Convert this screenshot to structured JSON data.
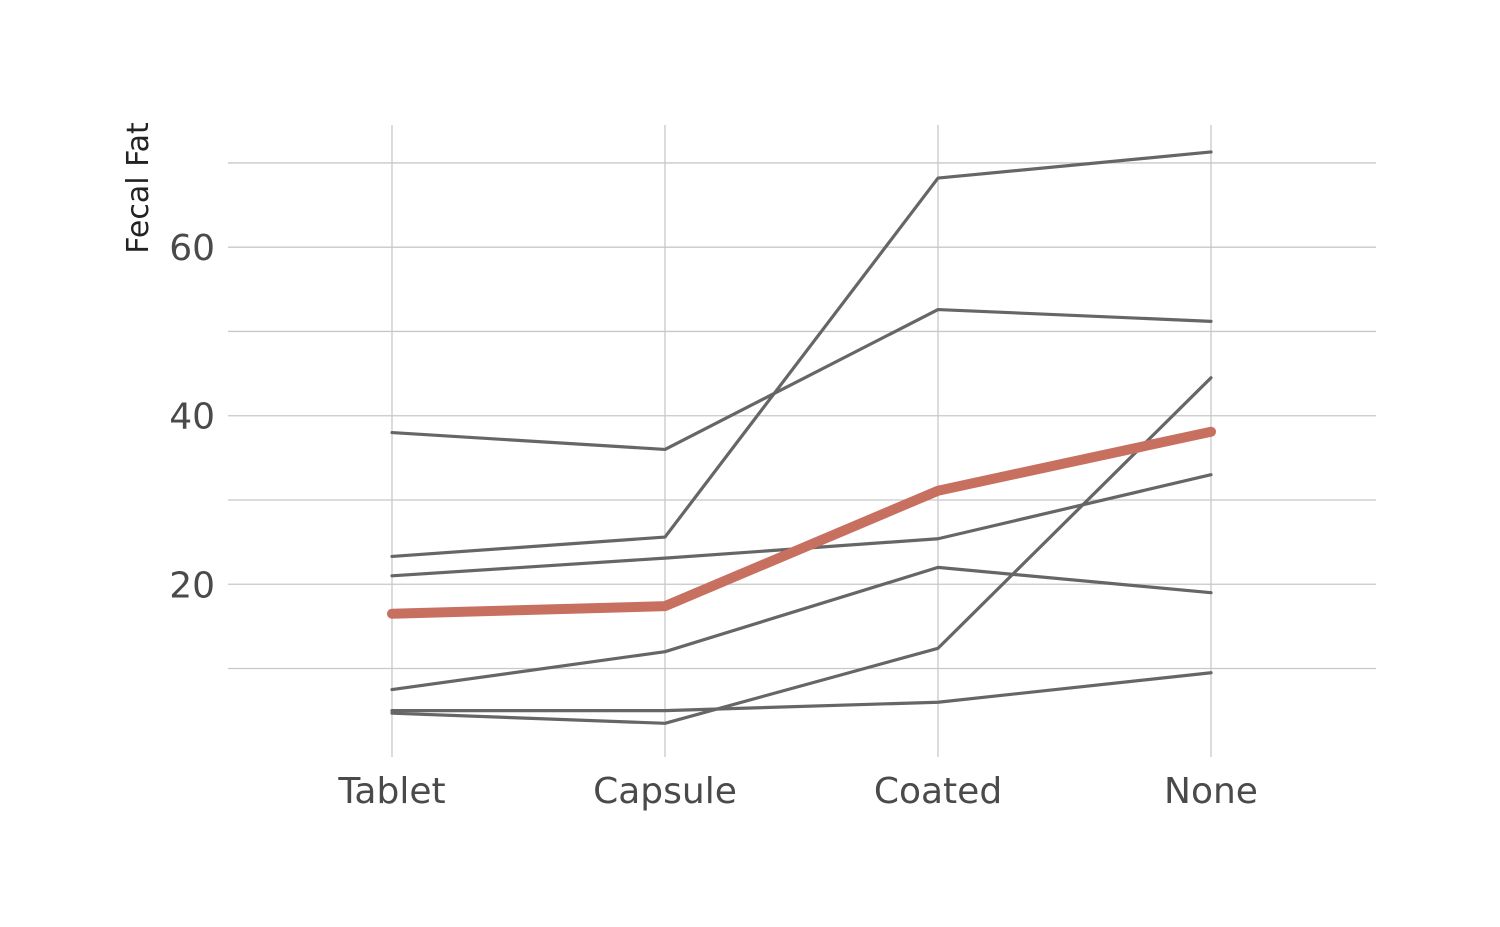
{
  "chart_data": {
    "type": "line",
    "title": "",
    "xlabel": "",
    "ylabel": "Fecal Fat",
    "categories": [
      "Tablet",
      "Capsule",
      "Coated",
      "None"
    ],
    "ylim": [
      -0.5,
      74.5
    ],
    "yticks": [
      20,
      40,
      60
    ],
    "y_minor_gridlines": [
      10,
      30,
      50,
      70
    ],
    "grid": true,
    "colors": {
      "subject": "#666666",
      "mean": "#c87060"
    },
    "series": [
      {
        "values": [
          38.0,
          36.0,
          52.6,
          51.2
        ]
      },
      {
        "values": [
          23.3,
          25.6,
          68.2,
          71.3
        ]
      },
      {
        "values": [
          21.0,
          23.1,
          25.4,
          33.0
        ]
      },
      {
        "values": [
          7.5,
          12.0,
          22.0,
          19.0
        ]
      },
      {
        "values": [
          4.7,
          3.5,
          12.4,
          44.5
        ]
      },
      {
        "values": [
          5.0,
          5.0,
          6.0,
          9.5
        ]
      },
      {
        "highlight": true,
        "values": [
          16.5,
          17.4,
          31.1,
          38.1
        ]
      }
    ]
  }
}
